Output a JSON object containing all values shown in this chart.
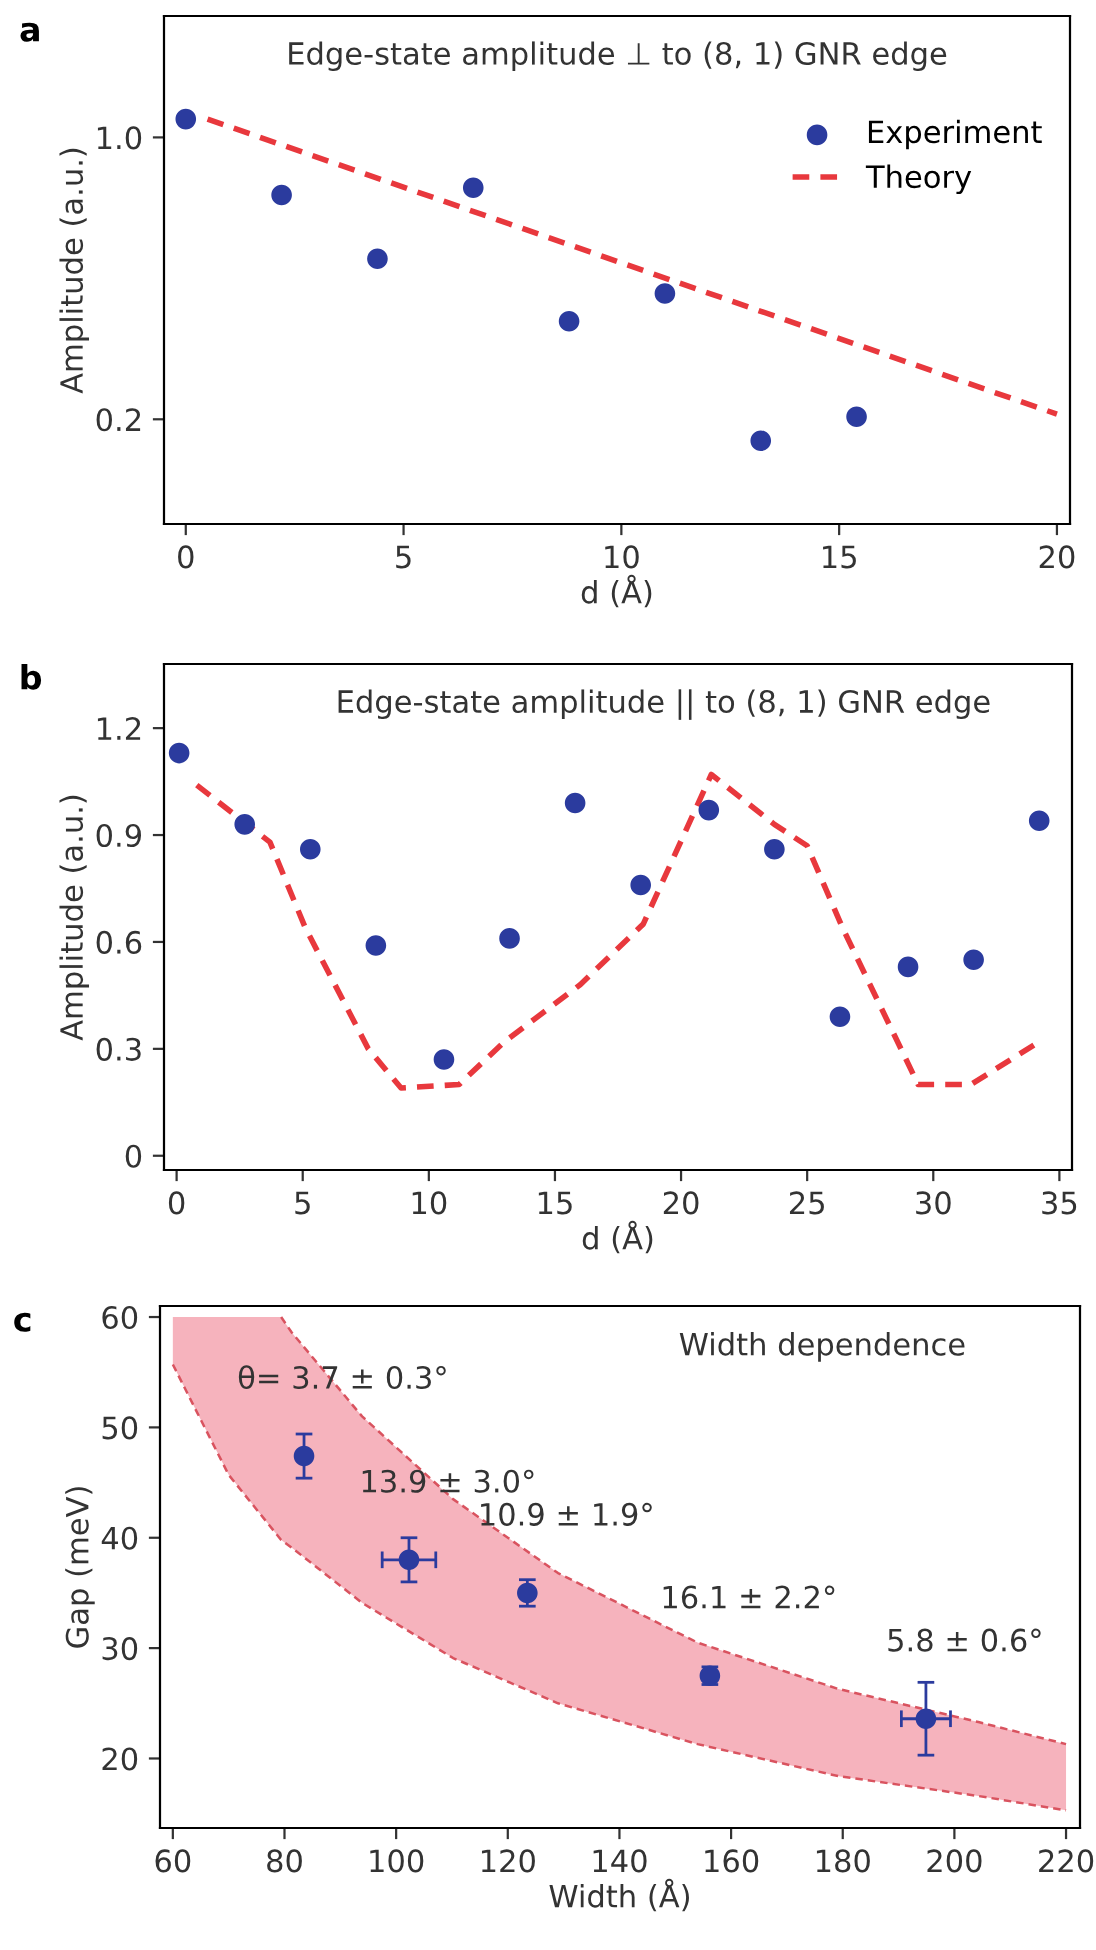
{
  "chart_data": [
    {
      "type": "scatter",
      "title": "Edge-state amplitude ⊥ to (8, 1) GNR edge",
      "xlabel": "d (Å)",
      "ylabel": "Amplitude (a.u.)",
      "annotations": [
        "a"
      ],
      "log": "y",
      "xlim": [
        -0.5,
        20.3
      ],
      "ylim": [
        0.11,
        2.0
      ],
      "xticks": [
        0,
        5,
        10,
        15,
        20
      ],
      "yticks": [
        {
          "value": 0.2,
          "label": "0.2"
        },
        {
          "value": 1.0,
          "label": "1.0"
        }
      ],
      "legend": "top right",
      "grid": false,
      "series": [
        {
          "name": "Experiment",
          "marker": "circle",
          "color": "#2b3b9e",
          "x": [
            0,
            2.2,
            4.4,
            6.6,
            8.8,
            11.0,
            13.2,
            15.4
          ],
          "values": [
            1.11,
            0.72,
            0.5,
            0.75,
            0.35,
            0.41,
            0.177,
            0.203
          ]
        },
        {
          "name": "Theory",
          "type": "line",
          "color": "#e8383d",
          "line_style": "dashed",
          "x": [
            0.5,
            20
          ],
          "values": [
            1.11,
            0.206
          ]
        }
      ]
    },
    {
      "type": "scatter",
      "title": "Edge-state amplitude || to (8, 1) GNR edge",
      "xlabel": "d (Å)",
      "ylabel": "Amplitude (a.u.)",
      "annotations": [
        "b"
      ],
      "xlim": [
        -0.5,
        35.5
      ],
      "ylim": [
        -0.04,
        1.38
      ],
      "xticks": [
        0,
        5,
        10,
        15,
        20,
        25,
        30,
        35
      ],
      "yticks": [
        0,
        0.3,
        0.6,
        0.9,
        1.2
      ],
      "grid": false,
      "series": [
        {
          "marker": "circle",
          "color": "#2b3b9e",
          "x": [
            0.1,
            2.7,
            5.3,
            7.9,
            10.6,
            13.2,
            15.8,
            18.4,
            21.1,
            23.7,
            26.3,
            29.0,
            31.6,
            34.2
          ],
          "values": [
            1.13,
            0.93,
            0.86,
            0.59,
            0.27,
            0.61,
            0.99,
            0.76,
            0.97,
            0.86,
            0.39,
            0.53,
            0.55,
            0.94
          ]
        },
        {
          "type": "line",
          "color": "#e8383d",
          "line_style": "dashed",
          "x": [
            0.8,
            3.7,
            5.1,
            7.6,
            8.9,
            11.2,
            13.0,
            16.0,
            18.5,
            21.2,
            23.7,
            25.0,
            26.4,
            29.4,
            31.5,
            34.2
          ],
          "values": [
            1.04,
            0.88,
            0.64,
            0.3,
            0.19,
            0.2,
            0.32,
            0.48,
            0.65,
            1.07,
            0.93,
            0.87,
            0.64,
            0.2,
            0.2,
            0.32
          ]
        }
      ]
    },
    {
      "type": "scatter",
      "title": "Width dependence",
      "xlabel": "Width (Å)",
      "ylabel": "Gap (meV)",
      "xlim": [
        57.7,
        222.5
      ],
      "ylim": [
        13.7,
        61
      ],
      "xticks": [
        60,
        80,
        100,
        120,
        140,
        160,
        180,
        200,
        220
      ],
      "yticks": [
        20,
        30,
        40,
        50,
        60
      ],
      "grid": false,
      "annotations": [
        "c",
        {
          "text": "θ= 3.7 ± 0.3°",
          "x": 83.5,
          "y": 47.4
        },
        {
          "text": "13.9 ± 3.0°",
          "x": 102.3,
          "y": 38.0
        },
        {
          "text": "10.9 ± 1.9°",
          "x": 123.5,
          "y": 35.0
        },
        {
          "text": "16.1 ± 2.2°",
          "x": 156.2,
          "y": 27.5
        },
        {
          "text": "5.8 ± 0.6°",
          "x": 194.9,
          "y": 23.6
        }
      ],
      "series": [
        {
          "type": "area",
          "color": "#f6b3bd",
          "line_style": "dashed",
          "x": [
            60,
            70,
            79.4,
            81.3,
            93.9,
            110.2,
            129,
            154,
            179.2,
            204.3,
            220
          ],
          "values": [
            null,
            null,
            null,
            null,
            null,
            null,
            null,
            null,
            null,
            null,
            null
          ],
          "lower": [
            55.7,
            45.7,
            39.8,
            39.1,
            34.1,
            29.1,
            25.0,
            21.3,
            18.4,
            16.6,
            15.3
          ],
          "upper": [
            60,
            60,
            60,
            58.6,
            51,
            43.5,
            36.8,
            30.5,
            26.3,
            23.3,
            21.3
          ]
        },
        {
          "type": "line",
          "color": "#d9535f",
          "line_style": "dashed",
          "x": [
            60,
            70,
            79.4,
            81.3,
            93.9,
            110.2,
            129,
            154,
            179.2,
            204.3,
            220
          ],
          "values": [
            55.7,
            45.7,
            39.8,
            39.1,
            34.1,
            29.1,
            25.0,
            21.3,
            18.4,
            16.6,
            15.3
          ]
        },
        {
          "type": "line",
          "color": "#d9535f",
          "line_style": "dashed",
          "x": [
            79.4,
            81.3,
            93.9,
            110.2,
            129,
            154,
            179.2,
            204.3,
            220
          ],
          "values": [
            60,
            58.6,
            51,
            43.5,
            36.8,
            30.5,
            26.3,
            23.3,
            21.3
          ]
        },
        {
          "marker": "circle",
          "color": "#2b3b9e",
          "x": [
            83.5,
            102.3,
            123.5,
            156.2,
            194.9
          ],
          "values": [
            47.4,
            38.0,
            35.0,
            27.5,
            23.6
          ],
          "errors": [
            2.0,
            2.0,
            1.2,
            0.8,
            3.3
          ],
          "xerrors": [
            null,
            4.8,
            null,
            null,
            4.4
          ]
        }
      ]
    }
  ]
}
